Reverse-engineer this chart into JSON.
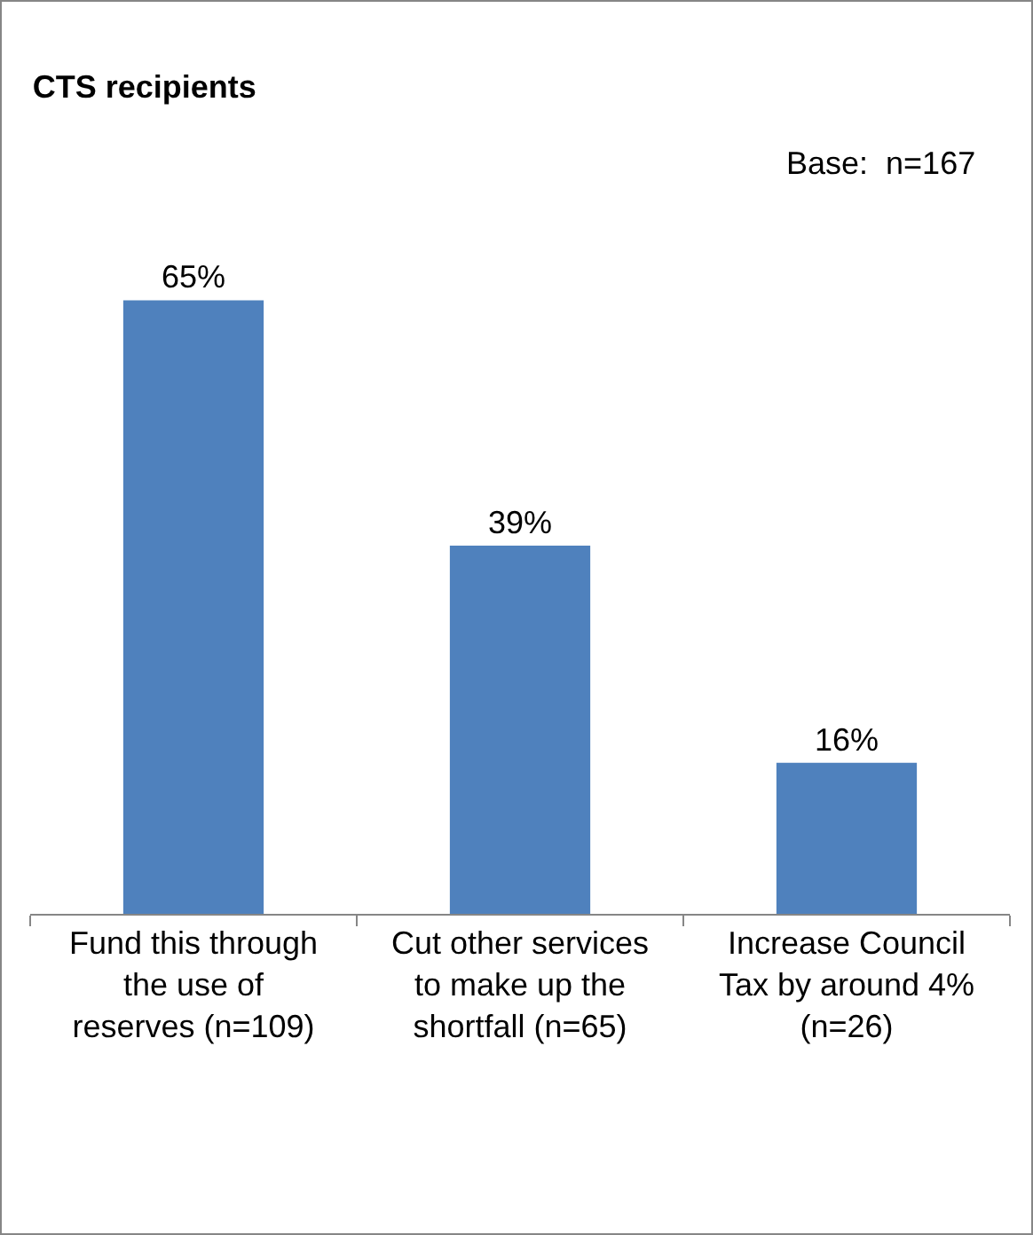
{
  "chart_data": {
    "type": "bar",
    "title": "CTS recipients",
    "annotations": [
      "Base:  n=167"
    ],
    "categories": [
      "Fund this through the use of reserves (n=109)",
      "Cut other services to make up the shortfall (n=65)",
      "Increase Council Tax by around 4% (n=26)"
    ],
    "values": [
      65,
      39,
      16
    ],
    "color": "#4f81bd",
    "value_labels": [
      "65%",
      "39%",
      "16%"
    ],
    "grid": false,
    "legend": false
  }
}
